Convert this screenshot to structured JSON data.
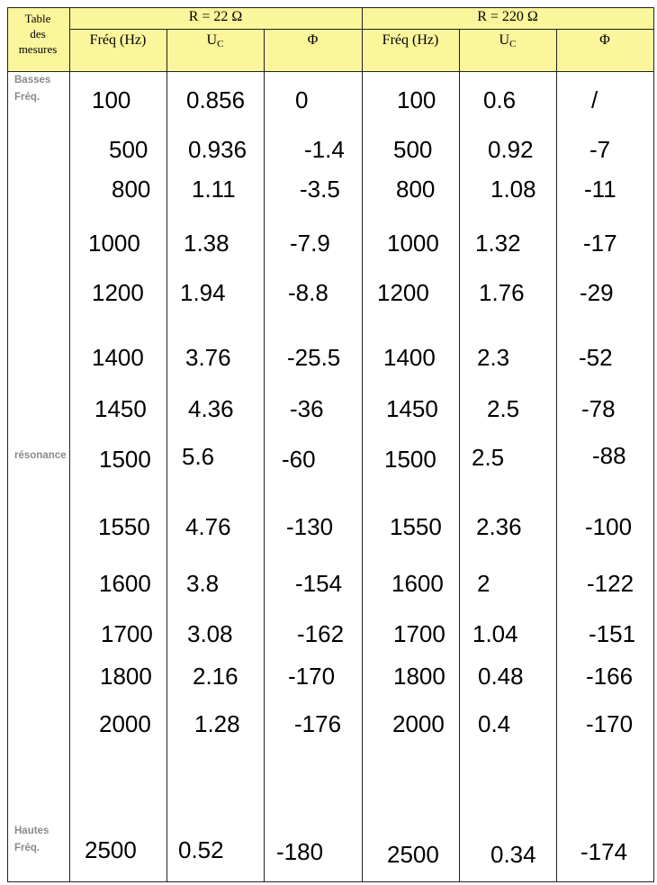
{
  "table": {
    "corner_label": [
      "Table",
      "des",
      "mesures"
    ],
    "group_22": "R = 22 Ω",
    "group_220": "R = 220 Ω",
    "col_freq": "Fréq (Hz)",
    "col_uc_main": "U",
    "col_uc_sub": "C",
    "col_phi": "Φ",
    "side_low": [
      "Basses",
      "Fréq."
    ],
    "side_res": "résonance",
    "side_high": [
      "Hautes",
      "Fréq."
    ],
    "rows": [
      [
        "100",
        "0.856",
        "0",
        "100",
        "0.6",
        "/"
      ],
      [
        "500",
        "0.936",
        "-1.4",
        "500",
        "0.92",
        "-7"
      ],
      [
        "800",
        "1.11",
        "-3.5",
        "800",
        "1.08",
        "-11"
      ],
      [
        "1000",
        "1.38",
        "-7.9",
        "1000",
        "1.32",
        "-17"
      ],
      [
        "1200",
        "1.94",
        "-8.8",
        "1200",
        "1.76",
        "-29"
      ],
      [
        "1400",
        "3.76",
        "-25.5",
        "1400",
        "2.3",
        "-52"
      ],
      [
        "1450",
        "4.36",
        "-36",
        "1450",
        "2.5",
        "-78"
      ],
      [
        "1500",
        "5.6",
        "-60",
        "1500",
        "2.5",
        "-88"
      ],
      [
        "1550",
        "4.76",
        "-130",
        "1550",
        "2.36",
        "-100"
      ],
      [
        "1600",
        "3.8",
        "-154",
        "1600",
        "2",
        "-122"
      ],
      [
        "1700",
        "3.08",
        "-162",
        "1700",
        "1.04",
        "-151"
      ],
      [
        "1800",
        "2.16",
        "-170",
        "1800",
        "0.48",
        "-166"
      ],
      [
        "2000",
        "1.28",
        "-176",
        "2000",
        "0.4",
        "-170"
      ],
      [
        "2500",
        "0.52",
        "-180",
        "2500",
        "0.34",
        "-174"
      ]
    ]
  }
}
